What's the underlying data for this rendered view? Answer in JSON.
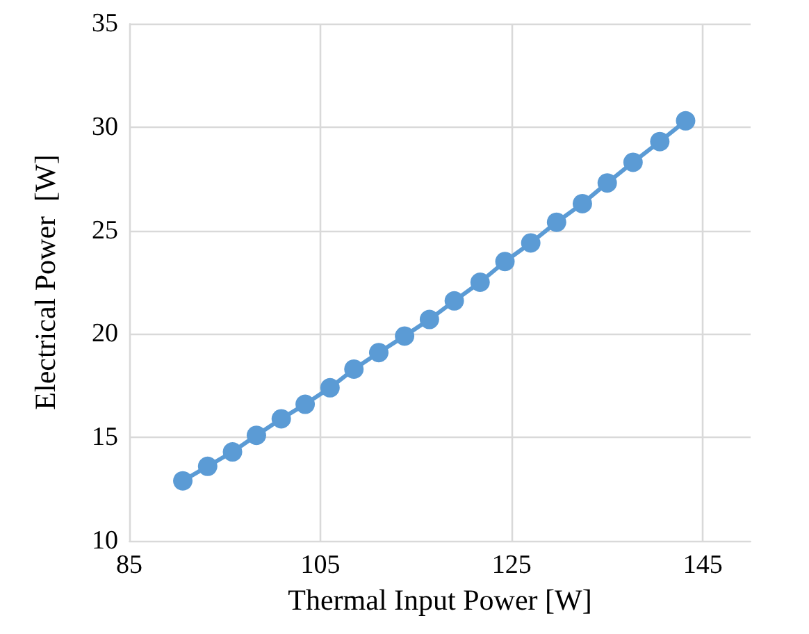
{
  "chart_data": {
    "type": "line",
    "xlabel": "Thermal Input Power [W]",
    "ylabel": "Electrical Power  [W]",
    "x": [
      90.6,
      93.2,
      95.8,
      98.3,
      100.9,
      103.4,
      106.0,
      108.5,
      111.1,
      113.8,
      116.4,
      119.0,
      121.7,
      124.3,
      127.0,
      129.7,
      132.4,
      135.0,
      137.7,
      140.5,
      143.2
    ],
    "series": [
      {
        "color": "#5b9bd5",
        "values": [
          12.9,
          13.6,
          14.3,
          15.1,
          15.9,
          16.6,
          17.4,
          18.3,
          19.1,
          19.9,
          20.7,
          21.6,
          22.5,
          23.5,
          24.4,
          25.4,
          26.3,
          27.3,
          28.3,
          29.3,
          30.3
        ]
      }
    ],
    "xlim": [
      85,
      150
    ],
    "xticks": [
      85,
      105,
      125,
      145
    ],
    "ylim": [
      10,
      35
    ],
    "yticks": [
      10,
      15,
      20,
      25,
      30,
      35
    ],
    "grid": true,
    "marker": "circle",
    "line_style": "solid"
  }
}
